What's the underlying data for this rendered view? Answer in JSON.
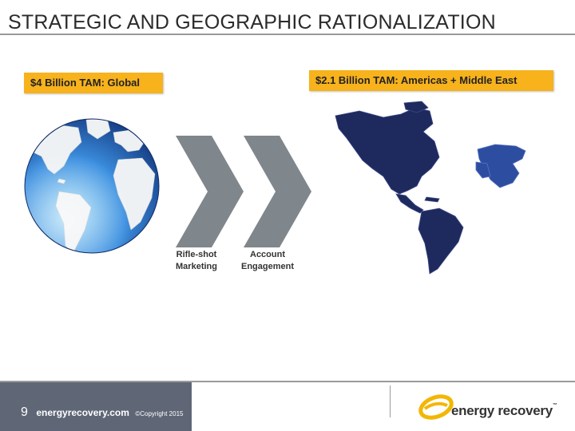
{
  "slide": {
    "title": "STRATEGIC AND GEOGRAPHIC RATIONALIZATION"
  },
  "tam": {
    "global": "$4 Billion TAM: Global",
    "regional": "$2.1 Billion TAM: Americas + Middle East"
  },
  "steps": [
    {
      "label_line1": "Rifle-shot",
      "label_line2": "Marketing"
    },
    {
      "label_line1": "Account",
      "label_line2": "Engagement"
    }
  ],
  "footer": {
    "page_number": "9",
    "website": "energyrecovery.com",
    "copyright": "©Copyright 2015",
    "logo_text": "energy recovery",
    "logo_tm": "™"
  },
  "colors": {
    "tam_box": "#f7b21c",
    "chevron": "#7f868c",
    "map_fill": "#1e2a5e",
    "globe_ocean": "#2b6fc8",
    "footer_band": "#5f6776",
    "logo_accent": "#f2b705"
  },
  "icons": {
    "globe": "globe-icon",
    "chevron": "chevron-right-icon",
    "map": "world-map-icon",
    "logo": "energy-recovery-logo"
  }
}
